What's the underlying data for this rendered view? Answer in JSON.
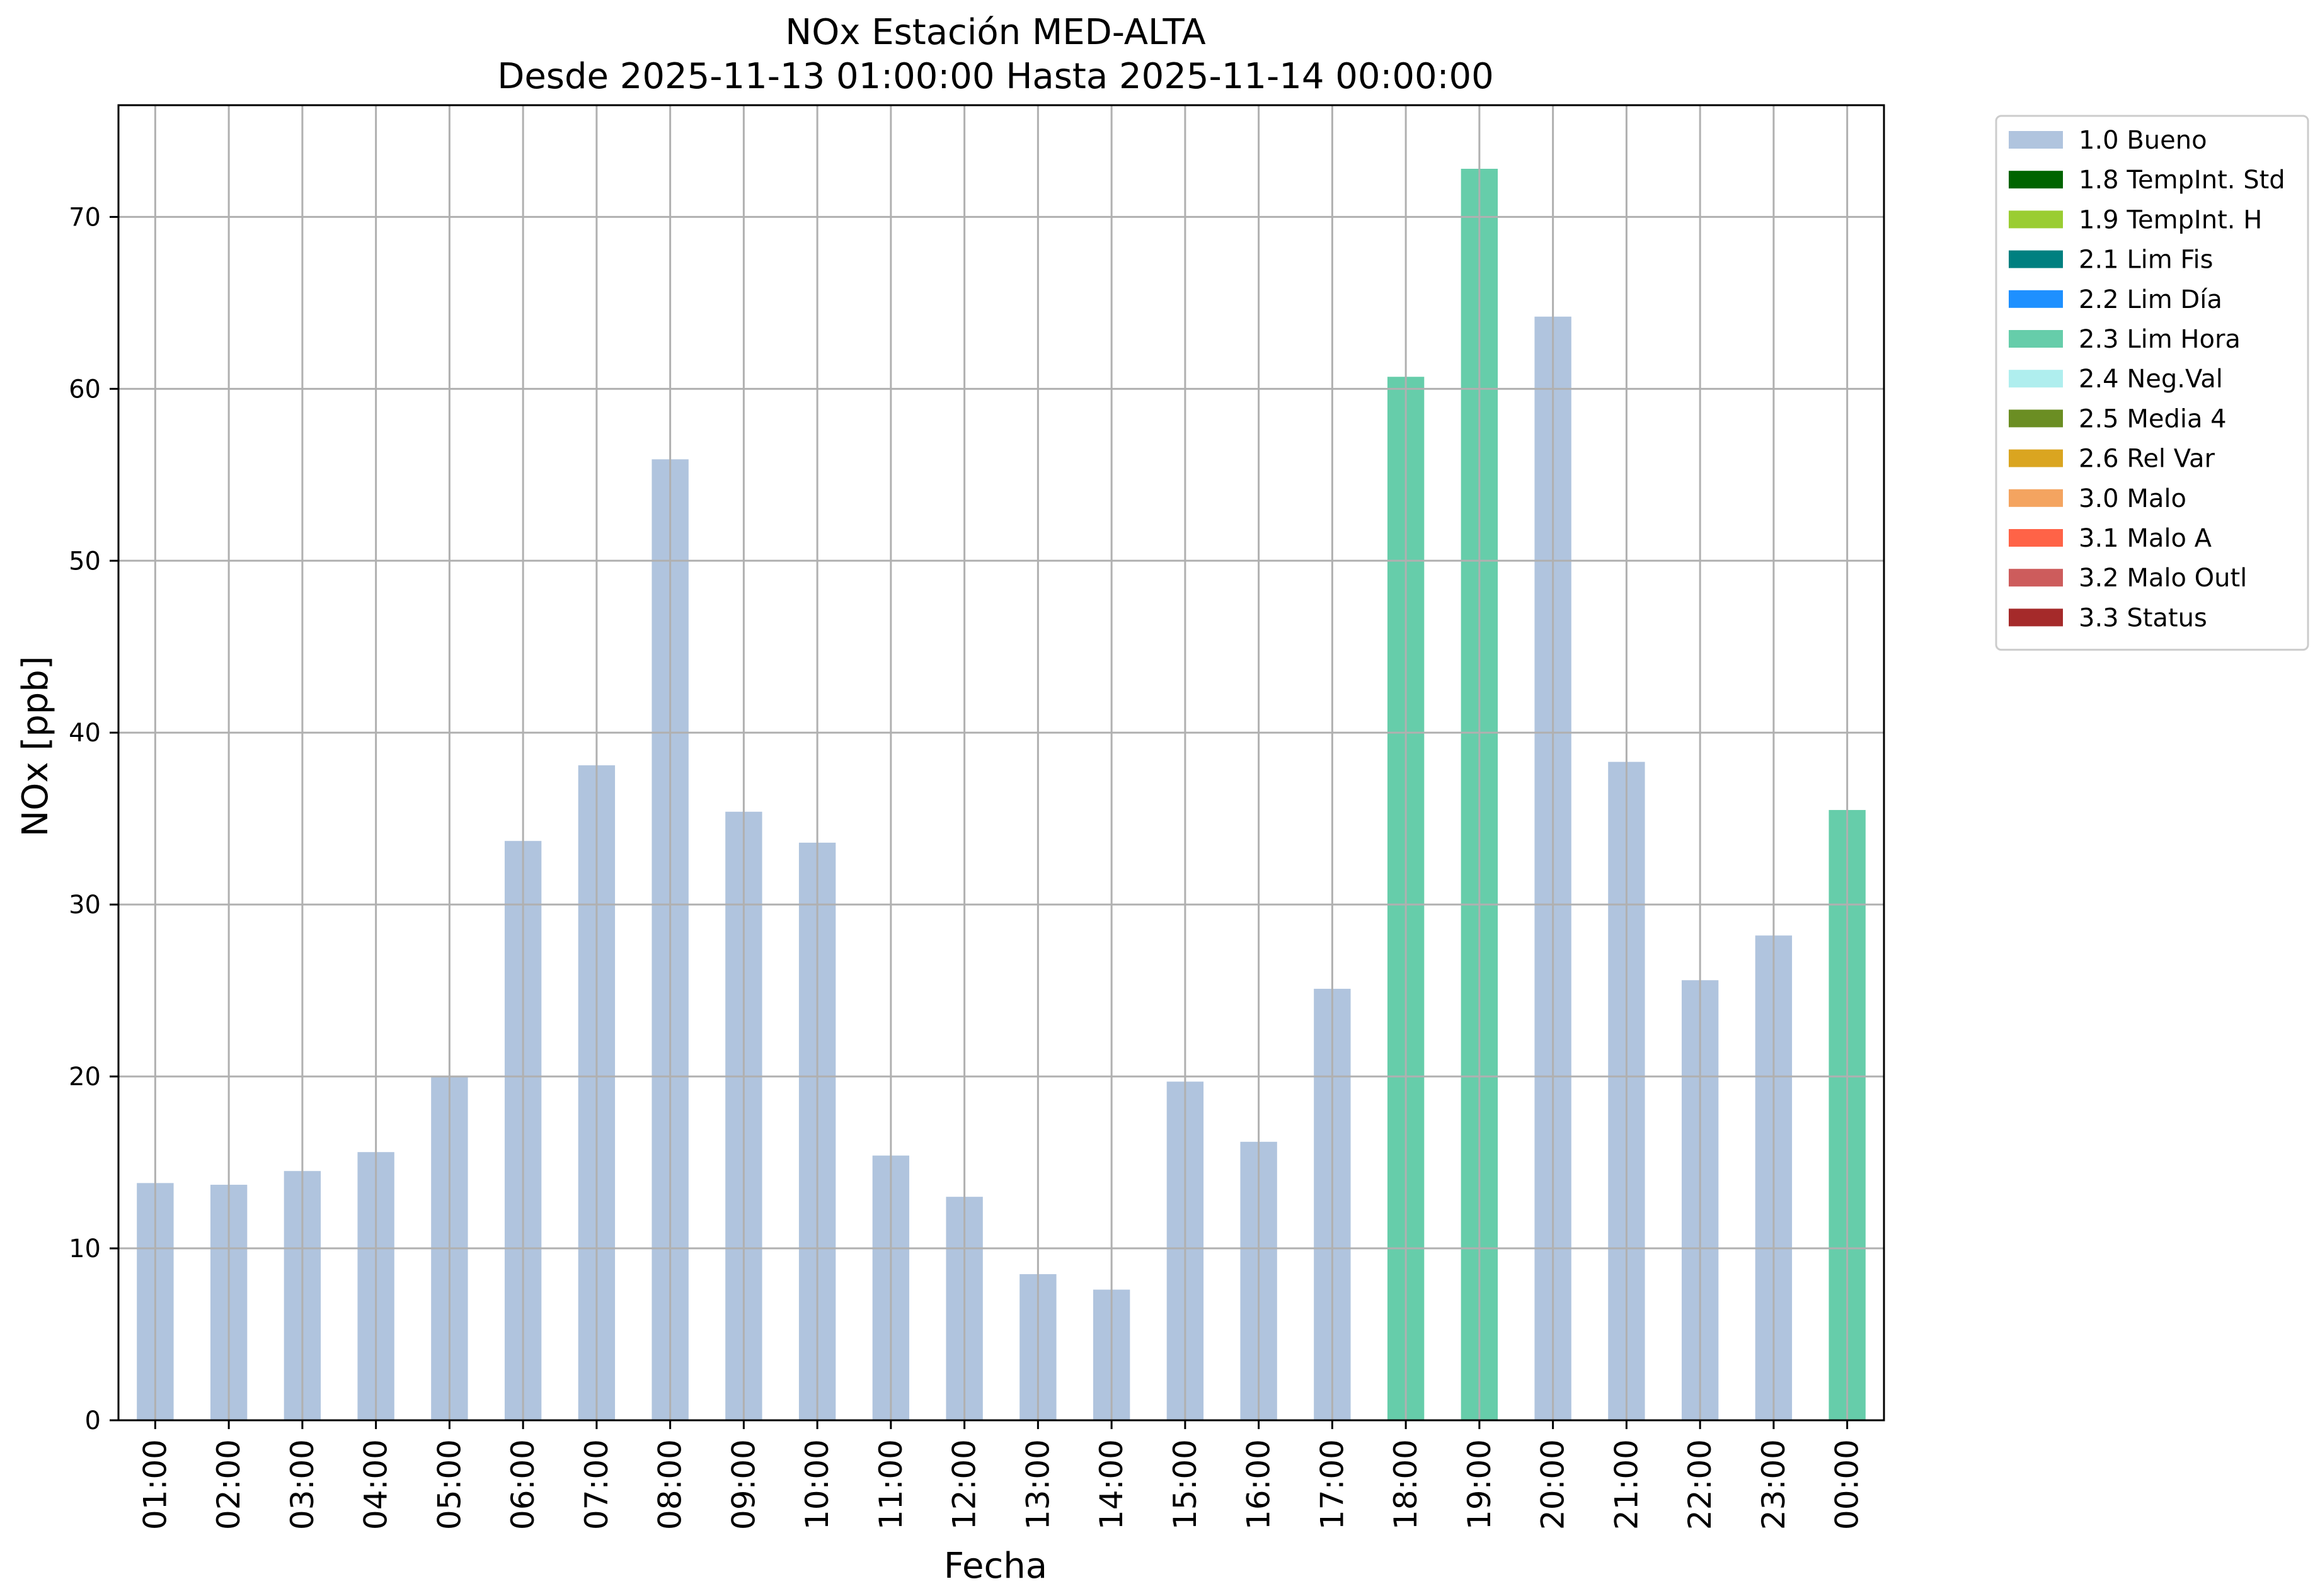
{
  "chart_data": {
    "type": "bar",
    "title": "NOx Estación MED-ALTA",
    "subtitle": "Desde 2025-11-13 01:00:00 Hasta 2025-11-14 00:00:00",
    "xlabel": "Fecha",
    "ylabel": "NOx [ppb]",
    "ylim": [
      0,
      76.5
    ],
    "yticks": [
      0,
      10,
      20,
      30,
      40,
      50,
      60,
      70
    ],
    "grid": true,
    "legend_position": "outside-top-right",
    "categories": [
      "01:00",
      "02:00",
      "03:00",
      "04:00",
      "05:00",
      "06:00",
      "07:00",
      "08:00",
      "09:00",
      "10:00",
      "11:00",
      "12:00",
      "13:00",
      "14:00",
      "15:00",
      "16:00",
      "17:00",
      "18:00",
      "19:00",
      "20:00",
      "21:00",
      "22:00",
      "23:00",
      "00:00"
    ],
    "values": [
      13.8,
      13.7,
      14.5,
      15.6,
      20.0,
      33.7,
      38.1,
      55.9,
      35.4,
      33.6,
      15.4,
      13.0,
      8.5,
      7.6,
      19.7,
      16.2,
      25.1,
      60.7,
      72.8,
      64.2,
      38.3,
      25.6,
      28.2,
      35.5
    ],
    "flags": [
      "1.0 Bueno",
      "1.0 Bueno",
      "1.0 Bueno",
      "1.0 Bueno",
      "1.0 Bueno",
      "1.0 Bueno",
      "1.0 Bueno",
      "1.0 Bueno",
      "1.0 Bueno",
      "1.0 Bueno",
      "1.0 Bueno",
      "1.0 Bueno",
      "1.0 Bueno",
      "1.0 Bueno",
      "1.0 Bueno",
      "1.0 Bueno",
      "1.0 Bueno",
      "2.3 Lim Hora",
      "2.3 Lim Hora",
      "1.0 Bueno",
      "1.0 Bueno",
      "1.0 Bueno",
      "1.0 Bueno",
      "2.3 Lim Hora"
    ],
    "legend": [
      {
        "name": "1.0 Bueno",
        "color": "#b0c4de"
      },
      {
        "name": "1.8 TempInt. Std",
        "color": "#006400"
      },
      {
        "name": "1.9 TempInt. H",
        "color": "#9acd32"
      },
      {
        "name": "2.1 Lim Fis",
        "color": "#008080"
      },
      {
        "name": "2.2 Lim Día",
        "color": "#1e90ff"
      },
      {
        "name": "2.3 Lim Hora",
        "color": "#66cdaa"
      },
      {
        "name": "2.4 Neg.Val",
        "color": "#afeeee"
      },
      {
        "name": "2.5 Media 4",
        "color": "#6b8e23"
      },
      {
        "name": "2.6 Rel Var",
        "color": "#daa520"
      },
      {
        "name": "3.0 Malo",
        "color": "#f4a460"
      },
      {
        "name": "3.1 Malo A",
        "color": "#ff6347"
      },
      {
        "name": "3.2 Malo Outl",
        "color": "#cd5c5c"
      },
      {
        "name": "3.3 Status",
        "color": "#a52a2a"
      }
    ]
  }
}
